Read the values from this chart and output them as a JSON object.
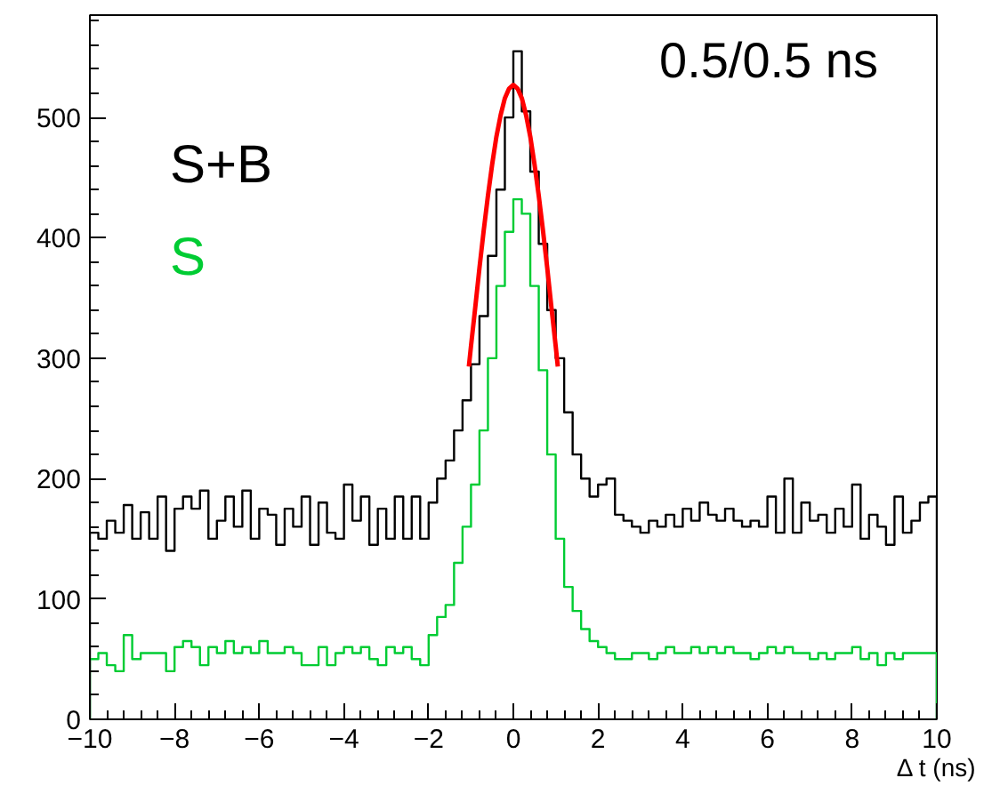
{
  "chart_data": {
    "type": "histogram",
    "xlabel": "Δ t (ns)",
    "annotations": [
      "0.5/0.5 ns"
    ],
    "bins": [
      -10,
      -9.8,
      -9.6,
      -9.4,
      -9.2,
      -9,
      -8.8,
      -8.6,
      -8.4,
      -8.2,
      -8,
      -7.8,
      -7.6,
      -7.4,
      -7.2,
      -7,
      -6.8,
      -6.6,
      -6.4,
      -6.2,
      -6,
      -5.8,
      -5.6,
      -5.4,
      -5.2,
      -5,
      -4.8,
      -4.6,
      -4.4,
      -4.2,
      -4,
      -3.8,
      -3.6,
      -3.4,
      -3.2,
      -3,
      -2.8,
      -2.6,
      -2.4,
      -2.2,
      -2,
      -1.8,
      -1.6,
      -1.4,
      -1.2,
      -1,
      -0.8,
      -0.6,
      -0.4,
      -0.2,
      0,
      0.2,
      0.4,
      0.6,
      0.8,
      1,
      1.2,
      1.4,
      1.6,
      1.8,
      2,
      2.2,
      2.4,
      2.6,
      2.8,
      3,
      3.2,
      3.4,
      3.6,
      3.8,
      4,
      4.2,
      4.4,
      4.6,
      4.8,
      5,
      5.2,
      5.4,
      5.6,
      5.8,
      6,
      6.2,
      6.4,
      6.6,
      6.8,
      7,
      7.2,
      7.4,
      7.6,
      7.8,
      8,
      8.2,
      8.4,
      8.6,
      8.8,
      9,
      9.2,
      9.4,
      9.6,
      9.8,
      10
    ],
    "series": [
      {
        "name": "S+B",
        "color": "#000000",
        "values": [
          155,
          150,
          165,
          155,
          178,
          150,
          172,
          150,
          185,
          140,
          175,
          185,
          175,
          190,
          150,
          165,
          185,
          160,
          190,
          150,
          175,
          170,
          145,
          175,
          160,
          185,
          145,
          180,
          155,
          150,
          195,
          165,
          185,
          145,
          175,
          150,
          185,
          150,
          185,
          150,
          180,
          200,
          215,
          240,
          265,
          295,
          335,
          385,
          440,
          500,
          555,
          505,
          455,
          395,
          340,
          300,
          255,
          220,
          200,
          185,
          195,
          200,
          170,
          165,
          160,
          155,
          165,
          160,
          170,
          160,
          175,
          165,
          180,
          170,
          165,
          175,
          165,
          160,
          165,
          160,
          185,
          155,
          200,
          155,
          180,
          165,
          170,
          155,
          175,
          160,
          195,
          150,
          170,
          160,
          145,
          185,
          155,
          165,
          180,
          185
        ]
      },
      {
        "name": "S",
        "color": "#00cc33",
        "values": [
          50,
          55,
          45,
          40,
          70,
          50,
          55,
          55,
          55,
          40,
          60,
          65,
          60,
          45,
          60,
          55,
          65,
          55,
          60,
          55,
          65,
          55,
          55,
          60,
          55,
          45,
          45,
          60,
          45,
          55,
          60,
          55,
          60,
          50,
          45,
          60,
          55,
          60,
          50,
          45,
          70,
          85,
          95,
          130,
          160,
          195,
          240,
          300,
          360,
          405,
          432,
          420,
          360,
          290,
          220,
          150,
          110,
          90,
          75,
          65,
          60,
          55,
          50,
          50,
          55,
          55,
          50,
          55,
          60,
          55,
          55,
          60,
          55,
          60,
          55,
          60,
          55,
          55,
          50,
          55,
          60,
          55,
          60,
          55,
          55,
          50,
          55,
          50,
          55,
          55,
          60,
          50,
          55,
          45,
          55,
          50,
          55,
          55,
          55,
          55
        ]
      },
      {
        "type": "line",
        "color": "#ff0000",
        "x": [
          -1.05,
          -1,
          -0.9,
          -0.8,
          -0.7,
          -0.6,
          -0.5,
          -0.4,
          -0.3,
          -0.2,
          -0.1,
          0,
          0.1,
          0.2,
          0.3,
          0.4,
          0.5,
          0.6,
          0.7,
          0.8,
          0.9,
          1,
          1.05
        ],
        "values": [
          293,
          310,
          342,
          375,
          406,
          435,
          461,
          484,
          502,
          516,
          524,
          527,
          524,
          516,
          502,
          484,
          461,
          435,
          406,
          375,
          342,
          310,
          293
        ]
      }
    ],
    "xlim": [
      -10,
      10
    ],
    "ylim": [
      0,
      585
    ],
    "xticks": [
      {
        "value": -10,
        "label": "−10"
      },
      {
        "value": -8,
        "label": "−8"
      },
      {
        "value": -6,
        "label": "−6"
      },
      {
        "value": -4,
        "label": "−4"
      },
      {
        "value": -2,
        "label": "−2"
      },
      0,
      2,
      4,
      6,
      8,
      10
    ],
    "yticks": [
      0,
      100,
      200,
      300,
      400,
      500
    ],
    "legend": "top left",
    "grid": false
  }
}
